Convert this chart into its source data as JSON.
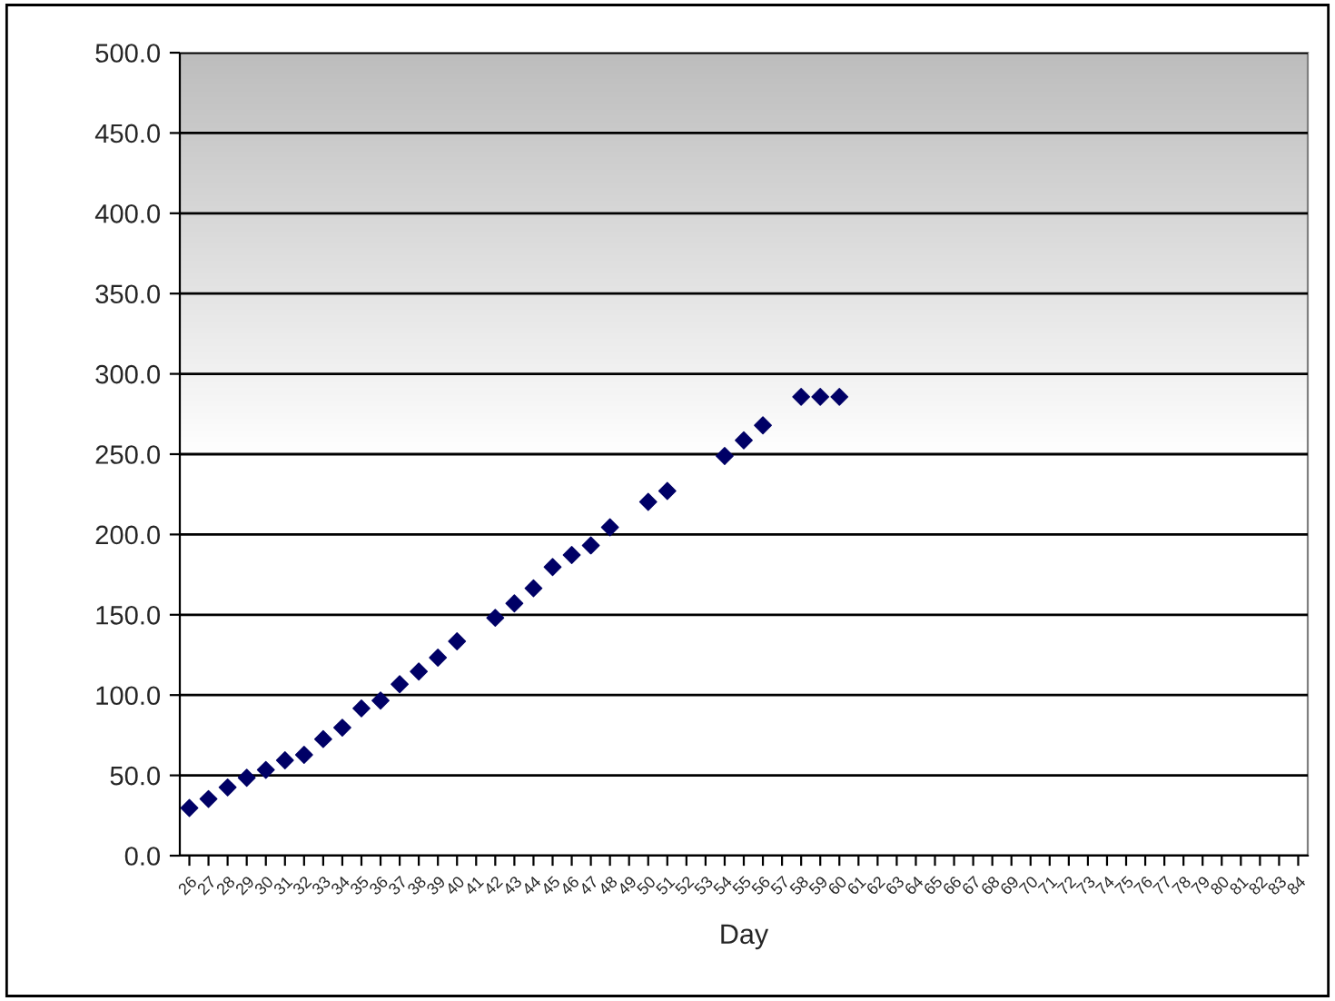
{
  "chart_data": {
    "type": "scatter",
    "xlabel": "Day",
    "categories": [
      "26",
      "27",
      "28",
      "29",
      "30",
      "31",
      "32",
      "33",
      "34",
      "35",
      "36",
      "37",
      "38",
      "39",
      "40",
      "41",
      "42",
      "43",
      "44",
      "45",
      "46",
      "47",
      "48",
      "49",
      "50",
      "51",
      "52",
      "53",
      "54",
      "55",
      "56",
      "57",
      "58",
      "59",
      "60",
      "61",
      "62",
      "63",
      "64",
      "65",
      "66",
      "67",
      "68",
      "69",
      "70",
      "71",
      "72",
      "73",
      "74",
      "75",
      "76",
      "77",
      "78",
      "79",
      "80",
      "81",
      "82",
      "83",
      "84"
    ],
    "series": [
      {
        "color": "#000066",
        "values": [
          29.7,
          35.3,
          42.5,
          48.5,
          53.4,
          59.4,
          62.8,
          72.6,
          79.7,
          91.7,
          96.6,
          106.8,
          114.7,
          123.3,
          133.5,
          null,
          148.1,
          157.1,
          166.5,
          179.7,
          187.2,
          193.2,
          204.5,
          null,
          220.3,
          227.1,
          null,
          null,
          248.9,
          258.6,
          268.0,
          null,
          285.7,
          285.7,
          285.7,
          null,
          null,
          null,
          null,
          null,
          null,
          null,
          null,
          null,
          null,
          null,
          null,
          null,
          null,
          null,
          null,
          null,
          null,
          null,
          null,
          null,
          null,
          null,
          null
        ]
      }
    ],
    "ylim": [
      0,
      500
    ],
    "yticks": [
      {
        "value": 0,
        "label": "0.0"
      },
      {
        "value": 50,
        "label": "50.0"
      },
      {
        "value": 100,
        "label": "100.0"
      },
      {
        "value": 150,
        "label": "150.0"
      },
      {
        "value": 200,
        "label": "200.0"
      },
      {
        "value": 250,
        "label": "250.0"
      },
      {
        "value": 300,
        "label": "300.0"
      },
      {
        "value": 350,
        "label": "350.0"
      },
      {
        "value": 400,
        "label": "400.0"
      },
      {
        "value": 450,
        "label": "450.0"
      },
      {
        "value": 500,
        "label": "500.0"
      }
    ],
    "grid": "y",
    "marker": "diamond",
    "legend": false
  }
}
